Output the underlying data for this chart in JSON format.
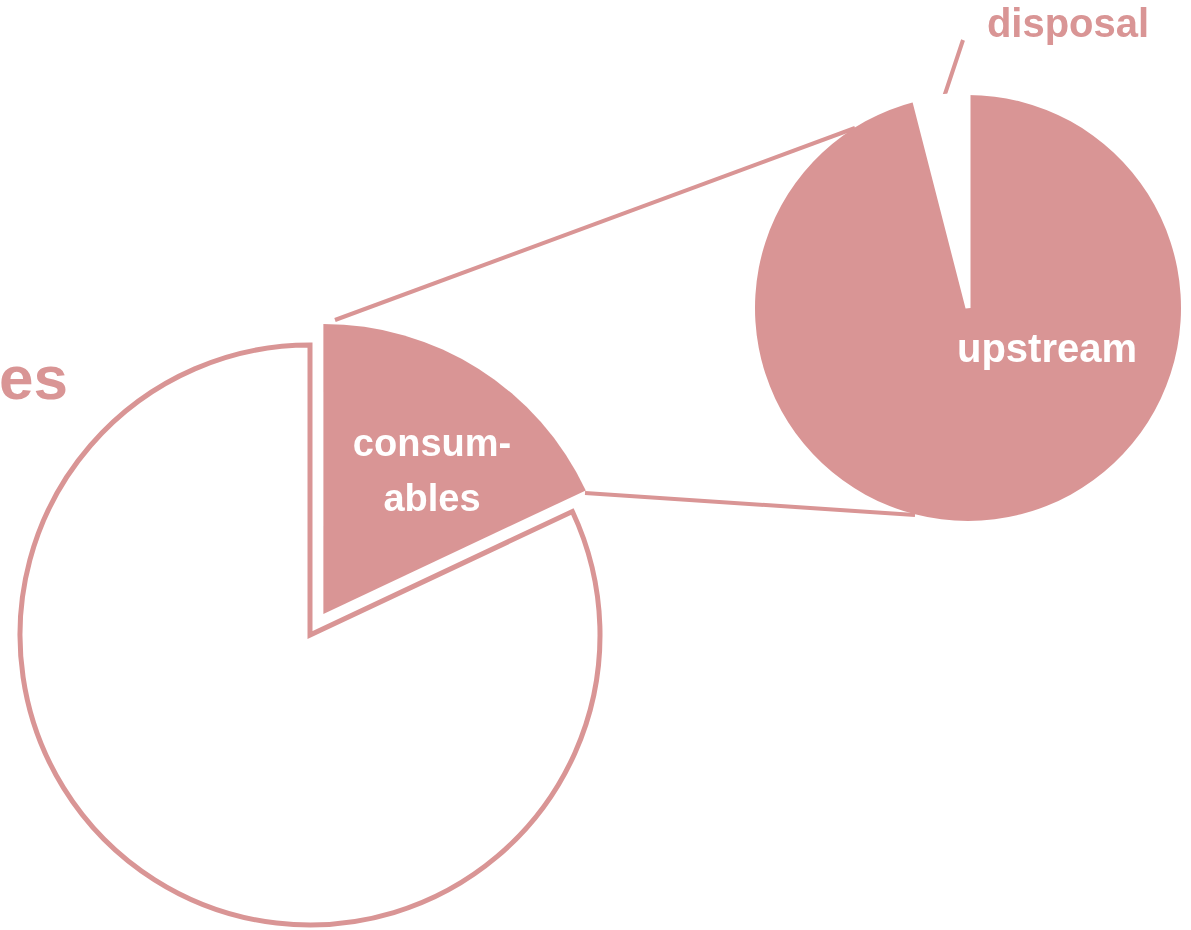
{
  "chart_data": [
    {
      "type": "pie",
      "categories": [
        "consum-\nables",
        "es"
      ],
      "values": [
        18,
        82
      ],
      "colors": [
        "#d99595",
        "#ffffff"
      ]
    },
    {
      "type": "pie",
      "categories": [
        "upstream",
        "disposal"
      ],
      "values": [
        96,
        4
      ],
      "colors": [
        "#d99595",
        "#ffffff"
      ]
    }
  ]
}
